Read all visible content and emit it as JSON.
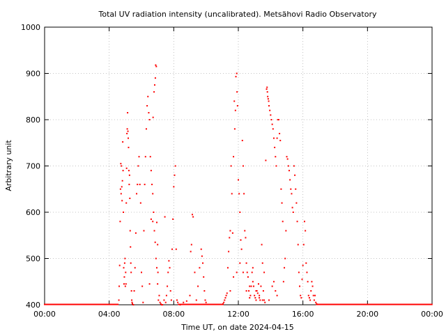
{
  "chart_data": {
    "type": "scatter",
    "title": "Total UV radiation intensity (uncalibrated). Metsähovi Radio Observatory",
    "xlabel": "Time UT, on date 2024-04-15",
    "ylabel": "Arbitrary unit",
    "x_unit": "hours UT",
    "xlim": [
      0,
      24
    ],
    "ylim": [
      400,
      1000
    ],
    "x_ticks": [
      "00:00",
      "04:00",
      "08:00",
      "12:00",
      "16:00",
      "20:00",
      "00:00"
    ],
    "y_ticks": [
      "400",
      "500",
      "600",
      "700",
      "800",
      "900",
      "1000"
    ],
    "grid": true,
    "marker_color": "#ff0000",
    "baseline": {
      "value": 400,
      "ranges": [
        [
          0,
          4.55
        ],
        [
          8.3,
          11.05
        ],
        [
          16.85,
          24
        ]
      ]
    },
    "series": [
      {
        "name": "",
        "points": [
          [
            4.6,
            410
          ],
          [
            4.62,
            440
          ],
          [
            4.65,
            485
          ],
          [
            4.68,
            580
          ],
          [
            4.7,
            650
          ],
          [
            4.72,
            705
          ],
          [
            4.74,
            640
          ],
          [
            4.76,
            700
          ],
          [
            4.78,
            655
          ],
          [
            4.8,
            625
          ],
          [
            4.82,
            668
          ],
          [
            4.84,
            752
          ],
          [
            4.86,
            690
          ],
          [
            4.88,
            600
          ],
          [
            4.9,
            480
          ],
          [
            4.92,
            445
          ],
          [
            4.94,
            460
          ],
          [
            4.96,
            490
          ],
          [
            4.98,
            500
          ],
          [
            5.0,
            440
          ],
          [
            5.02,
            470
          ],
          [
            5.04,
            445
          ],
          [
            5.06,
            620
          ],
          [
            5.08,
            695
          ],
          [
            5.1,
            770
          ],
          [
            5.12,
            780
          ],
          [
            5.14,
            815
          ],
          [
            5.16,
            775
          ],
          [
            5.18,
            760
          ],
          [
            5.2,
            740
          ],
          [
            5.22,
            690
          ],
          [
            5.24,
            660
          ],
          [
            5.26,
            680
          ],
          [
            5.28,
            630
          ],
          [
            5.3,
            560
          ],
          [
            5.32,
            525
          ],
          [
            5.34,
            490
          ],
          [
            5.36,
            470
          ],
          [
            5.38,
            430
          ],
          [
            5.4,
            410
          ],
          [
            5.42,
            405
          ],
          [
            5.44,
            402
          ],
          [
            5.5,
            400
          ],
          [
            5.55,
            430
          ],
          [
            5.6,
            480
          ],
          [
            5.65,
            555
          ],
          [
            5.7,
            640
          ],
          [
            5.75,
            660
          ],
          [
            5.8,
            700
          ],
          [
            5.85,
            720
          ],
          [
            5.9,
            660
          ],
          [
            5.95,
            620
          ],
          [
            6.0,
            470
          ],
          [
            6.05,
            440
          ],
          [
            6.1,
            405
          ],
          [
            6.15,
            560
          ],
          [
            6.2,
            660
          ],
          [
            6.25,
            720
          ],
          [
            6.3,
            780
          ],
          [
            6.35,
            830
          ],
          [
            6.4,
            850
          ],
          [
            6.45,
            815
          ],
          [
            6.5,
            800
          ],
          [
            6.55,
            720
          ],
          [
            6.6,
            690
          ],
          [
            6.65,
            660
          ],
          [
            6.7,
            640
          ],
          [
            6.75,
            600
          ],
          [
            6.8,
            560
          ],
          [
            6.85,
            535
          ],
          [
            6.9,
            500
          ],
          [
            6.95,
            480
          ],
          [
            7.0,
            445
          ],
          [
            6.5,
            445
          ],
          [
            6.6,
            585
          ],
          [
            6.7,
            580
          ],
          [
            6.72,
            805
          ],
          [
            6.78,
            860
          ],
          [
            6.82,
            875
          ],
          [
            6.86,
            890
          ],
          [
            6.88,
            918
          ],
          [
            6.92,
            915
          ],
          [
            6.95,
            578
          ],
          [
            7.0,
            530
          ],
          [
            7.02,
            470
          ],
          [
            7.05,
            410
          ],
          [
            7.1,
            420
          ],
          [
            7.15,
            405
          ],
          [
            7.2,
            402
          ],
          [
            7.25,
            400
          ],
          [
            7.3,
            400
          ],
          [
            7.4,
            410
          ],
          [
            7.45,
            590
          ],
          [
            7.5,
            405
          ],
          [
            7.55,
            420
          ],
          [
            7.6,
            440
          ],
          [
            7.65,
            470
          ],
          [
            7.7,
            495
          ],
          [
            7.75,
            480
          ],
          [
            7.8,
            430
          ],
          [
            7.85,
            410
          ],
          [
            7.9,
            520
          ],
          [
            7.95,
            585
          ],
          [
            8.0,
            655
          ],
          [
            8.05,
            680
          ],
          [
            8.1,
            700
          ],
          [
            8.15,
            520
          ],
          [
            8.2,
            410
          ],
          [
            8.25,
            405
          ],
          [
            8.4,
            400
          ],
          [
            8.6,
            405
          ],
          [
            8.8,
            408
          ],
          [
            9.0,
            420
          ],
          [
            9.05,
            515
          ],
          [
            9.1,
            530
          ],
          [
            9.15,
            595
          ],
          [
            9.2,
            590
          ],
          [
            9.3,
            470
          ],
          [
            9.4,
            410
          ],
          [
            9.5,
            440
          ],
          [
            9.6,
            480
          ],
          [
            9.7,
            520
          ],
          [
            9.75,
            505
          ],
          [
            9.8,
            490
          ],
          [
            9.85,
            460
          ],
          [
            9.9,
            430
          ],
          [
            9.95,
            410
          ],
          [
            10.0,
            405
          ],
          [
            11.05,
            402
          ],
          [
            11.1,
            405
          ],
          [
            11.15,
            410
          ],
          [
            11.2,
            415
          ],
          [
            11.25,
            420
          ],
          [
            11.3,
            425
          ],
          [
            11.35,
            480
          ],
          [
            11.4,
            515
          ],
          [
            11.45,
            545
          ],
          [
            11.5,
            560
          ],
          [
            11.55,
            700
          ],
          [
            11.6,
            640
          ],
          [
            11.65,
            555
          ],
          [
            11.7,
            720
          ],
          [
            11.75,
            840
          ],
          [
            11.78,
            780
          ],
          [
            11.82,
            820
          ],
          [
            11.85,
            893
          ],
          [
            11.9,
            900
          ],
          [
            11.92,
            860
          ],
          [
            11.95,
            830
          ],
          [
            12.0,
            670
          ],
          [
            12.05,
            640
          ],
          [
            12.1,
            600
          ],
          [
            12.15,
            540
          ],
          [
            12.2,
            520
          ],
          [
            12.25,
            755
          ],
          [
            12.3,
            700
          ],
          [
            12.35,
            640
          ],
          [
            12.4,
            560
          ],
          [
            12.45,
            545
          ],
          [
            12.5,
            490
          ],
          [
            12.55,
            470
          ],
          [
            12.6,
            460
          ],
          [
            12.65,
            430
          ],
          [
            12.7,
            415
          ],
          [
            12.75,
            420
          ],
          [
            12.8,
            440
          ],
          [
            12.85,
            470
          ],
          [
            12.9,
            480
          ],
          [
            12.95,
            440
          ],
          [
            13.0,
            420
          ],
          [
            13.05,
            415
          ],
          [
            13.1,
            410
          ],
          [
            13.15,
            430
          ],
          [
            13.2,
            425
          ],
          [
            13.25,
            445
          ],
          [
            13.3,
            420
          ],
          [
            13.35,
            410
          ],
          [
            13.4,
            440
          ],
          [
            13.45,
            530
          ],
          [
            13.5,
            490
          ],
          [
            13.55,
            430
          ],
          [
            13.6,
            410
          ],
          [
            13.65,
            405
          ],
          [
            13.7,
            712
          ],
          [
            13.75,
            866
          ],
          [
            13.78,
            870
          ],
          [
            13.8,
            860
          ],
          [
            13.82,
            850
          ],
          [
            13.85,
            845
          ],
          [
            13.88,
            840
          ],
          [
            13.9,
            830
          ],
          [
            13.95,
            820
          ],
          [
            14.0,
            810
          ],
          [
            14.05,
            800
          ],
          [
            14.1,
            790
          ],
          [
            14.15,
            780
          ],
          [
            14.2,
            760
          ],
          [
            14.25,
            740
          ],
          [
            14.3,
            720
          ],
          [
            14.35,
            700
          ],
          [
            14.4,
            760
          ],
          [
            14.45,
            800
          ],
          [
            14.5,
            800
          ],
          [
            14.55,
            770
          ],
          [
            14.6,
            755
          ],
          [
            14.65,
            650
          ],
          [
            14.7,
            620
          ],
          [
            14.75,
            580
          ],
          [
            14.8,
            450
          ],
          [
            14.85,
            480
          ],
          [
            14.9,
            500
          ],
          [
            14.95,
            560
          ],
          [
            15.0,
            720
          ],
          [
            15.05,
            715
          ],
          [
            15.1,
            700
          ],
          [
            15.15,
            690
          ],
          [
            15.2,
            670
          ],
          [
            15.25,
            650
          ],
          [
            15.3,
            640
          ],
          [
            15.35,
            610
          ],
          [
            15.4,
            600
          ],
          [
            15.45,
            700
          ],
          [
            15.5,
            680
          ],
          [
            15.55,
            650
          ],
          [
            15.6,
            620
          ],
          [
            15.65,
            580
          ],
          [
            15.7,
            530
          ],
          [
            15.75,
            470
          ],
          [
            15.8,
            440
          ],
          [
            15.85,
            420
          ],
          [
            15.9,
            415
          ],
          [
            15.95,
            455
          ],
          [
            16.0,
            485
          ],
          [
            16.05,
            530
          ],
          [
            16.1,
            580
          ],
          [
            16.15,
            560
          ],
          [
            16.2,
            490
          ],
          [
            16.25,
            470
          ],
          [
            16.3,
            450
          ],
          [
            16.35,
            420
          ],
          [
            16.4,
            415
          ],
          [
            16.45,
            410
          ],
          [
            16.5,
            430
          ],
          [
            16.55,
            450
          ],
          [
            16.6,
            440
          ],
          [
            16.65,
            420
          ],
          [
            16.7,
            410
          ],
          [
            16.75,
            420
          ],
          [
            16.8,
            405
          ],
          [
            16.85,
            402
          ],
          [
            13.9,
            410
          ],
          [
            14.1,
            440
          ],
          [
            14.2,
            450
          ],
          [
            14.3,
            430
          ],
          [
            14.4,
            420
          ],
          [
            13.6,
            470
          ],
          [
            13.5,
            410
          ],
          [
            13.3,
            415
          ],
          [
            13.1,
            430
          ],
          [
            12.9,
            450
          ],
          [
            12.7,
            440
          ],
          [
            12.5,
            430
          ],
          [
            12.3,
            470
          ],
          [
            12.1,
            490
          ],
          [
            11.9,
            470
          ],
          [
            11.7,
            460
          ],
          [
            11.5,
            430
          ]
        ]
      }
    ]
  }
}
